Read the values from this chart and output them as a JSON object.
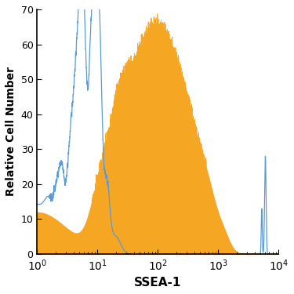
{
  "title": "",
  "xlabel": "SSEA-1",
  "ylabel": "Relative Cell Number",
  "xlim": [
    1,
    10000
  ],
  "ylim": [
    0,
    70
  ],
  "yticks": [
    0,
    10,
    20,
    30,
    40,
    50,
    60,
    70
  ],
  "blue_color": "#5b9bd5",
  "orange_color": "#f5a623",
  "background_color": "#ffffff",
  "figsize": [
    3.75,
    3.75
  ],
  "dpi": 100
}
